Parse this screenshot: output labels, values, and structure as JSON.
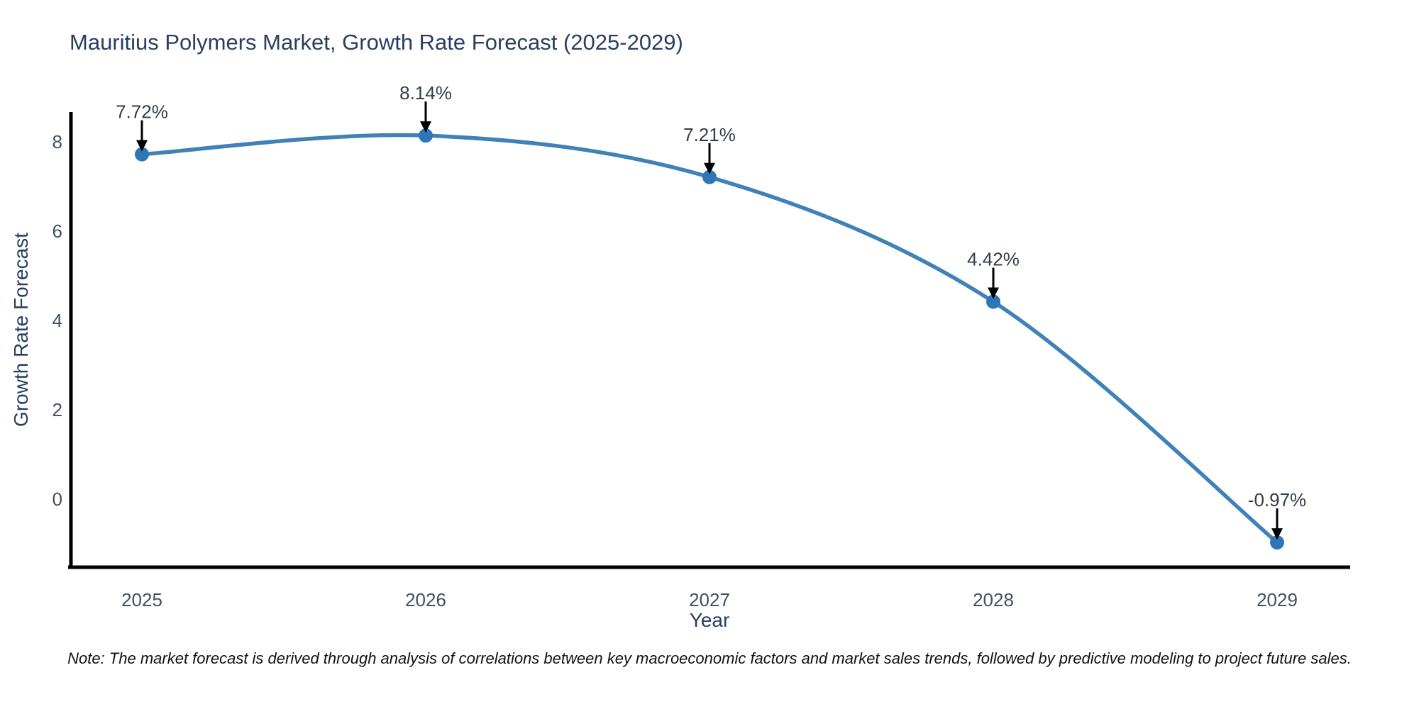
{
  "title": "Mauritius Polymers Market, Growth Rate Forecast (2025-2029)",
  "note": "Note: The market forecast is derived through analysis of correlations between key macroeconomic factors and market sales trends, followed by predictive modeling to project future sales.",
  "chart_data": {
    "type": "line",
    "title": "Mauritius Polymers Market, Growth Rate Forecast (2025-2029)",
    "xlabel": "Year",
    "ylabel": "Growth Rate Forecast",
    "x": [
      2025,
      2026,
      2027,
      2028,
      2029
    ],
    "series": [
      {
        "name": "Growth Rate Forecast",
        "values": [
          7.72,
          8.14,
          7.21,
          4.42,
          -0.97
        ],
        "labels": [
          "7.72%",
          "8.14%",
          "7.21%",
          "4.42%",
          "-0.97%"
        ]
      }
    ],
    "yticks": [
      8,
      6,
      4,
      2,
      0
    ],
    "xticks": [
      "2025",
      "2026",
      "2027",
      "2028",
      "2029"
    ],
    "ylim": [
      -1.55,
      8.65
    ],
    "grid": false,
    "legend": "none",
    "line_shape": "spline",
    "annotations": "value labels with downward arrows above each point",
    "colors": {
      "line": "#4181b8",
      "marker": "#2e76b5",
      "arrow": "#000000",
      "spine": "#000000",
      "title": "#2a3f5f",
      "tick": "#42505f",
      "label": "#333d49"
    }
  }
}
